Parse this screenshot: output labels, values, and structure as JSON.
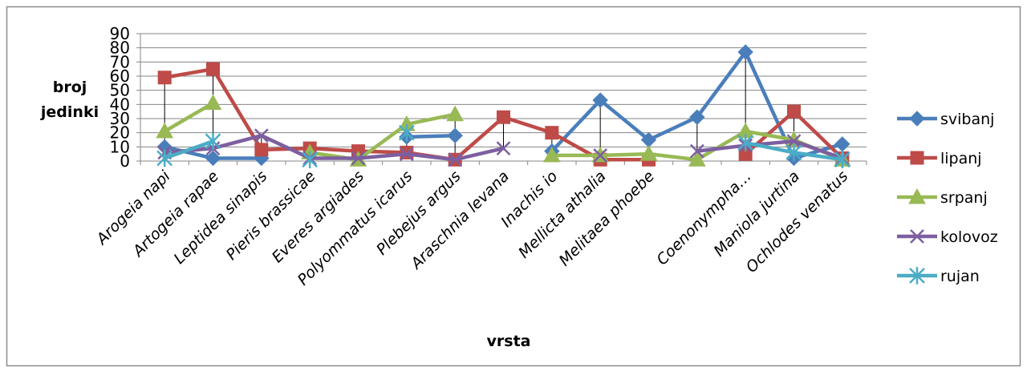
{
  "chart_data": {
    "type": "line",
    "title": "",
    "xlabel": "vrsta",
    "ylabel": [
      "broj",
      "jedinki"
    ],
    "ylim": [
      0,
      90
    ],
    "yticks": [
      0,
      10,
      20,
      30,
      40,
      50,
      60,
      70,
      80,
      90
    ],
    "grid": true,
    "legend_position": "right",
    "categories": [
      "Arogeia napi",
      "Artogeia rapae",
      "Leptidea sinapis",
      "Pieris brassicae",
      "Everes argiades",
      "Polyommatus icarus",
      "Plebejus argus",
      "Araschnia levana",
      "Inachis io",
      "Mellicta athalia",
      "Melitaea phoebe",
      "",
      "Coenonympha…",
      "Maniola jurtina",
      "Ochlodes venatus"
    ],
    "series": [
      {
        "name": "svibanj",
        "color": "#4a7ebb",
        "marker": "diamond",
        "values": [
          10,
          2,
          2,
          null,
          null,
          17,
          18,
          null,
          7,
          43,
          15,
          31,
          77,
          2,
          12
        ]
      },
      {
        "name": "lipanj",
        "color": "#be4b48",
        "marker": "square",
        "values": [
          59,
          65,
          8,
          9,
          7,
          6,
          1,
          31,
          20,
          1,
          1,
          null,
          5,
          35,
          2
        ]
      },
      {
        "name": "srpanj",
        "color": "#98b954",
        "marker": "triangle",
        "values": [
          21,
          41,
          null,
          6,
          1,
          26,
          33,
          null,
          4,
          4,
          5,
          1,
          21,
          15,
          1
        ]
      },
      {
        "name": "kolovoz",
        "color": "#7d5fa0",
        "marker": "x",
        "values": [
          6,
          9,
          18,
          2,
          2,
          5,
          1,
          9,
          null,
          4,
          null,
          7,
          11,
          14,
          2
        ]
      },
      {
        "name": "rujan",
        "color": "#4bacc6",
        "marker": "star",
        "values": [
          2,
          14,
          null,
          1,
          null,
          20,
          null,
          null,
          null,
          null,
          null,
          null,
          13,
          6,
          1
        ]
      }
    ]
  }
}
